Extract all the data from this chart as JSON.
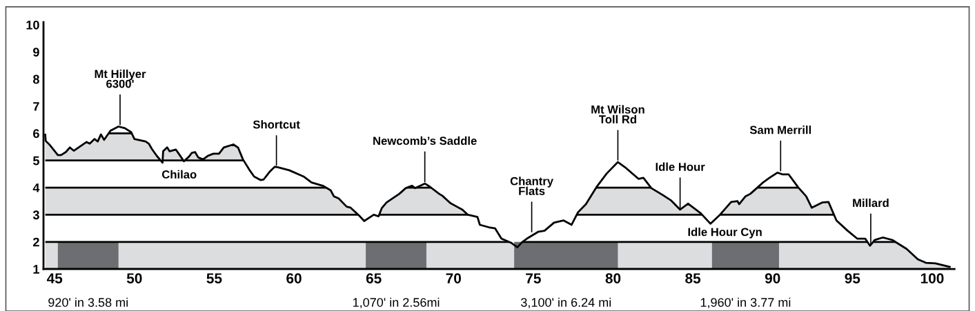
{
  "chart_data": {
    "type": "line",
    "x": [
      44.41,
      44.44,
      44.7,
      45.2,
      45.4,
      45.7,
      45.95,
      46.2,
      47.0,
      47.2,
      47.5,
      47.7,
      47.9,
      48.1,
      48.5,
      49.0,
      49.4,
      49.8,
      50.0,
      50.7,
      50.9,
      51.1,
      51.4,
      51.76,
      51.8,
      52.05,
      52.2,
      52.6,
      52.8,
      53.1,
      53.4,
      53.6,
      53.8,
      54.0,
      54.3,
      54.6,
      54.95,
      55.3,
      55.6,
      56.2,
      56.5,
      56.8,
      57.2,
      57.5,
      57.9,
      58.1,
      58.5,
      58.8,
      59.0,
      59.7,
      60.6,
      61.1,
      61.8,
      62.3,
      62.5,
      62.8,
      63.3,
      63.55,
      64.1,
      64.4,
      65.0,
      65.3,
      65.5,
      65.8,
      66.6,
      67.0,
      67.4,
      67.6,
      68.2,
      68.5,
      69.1,
      69.3,
      69.8,
      70.2,
      70.55,
      70.9,
      71.5,
      71.65,
      72.2,
      72.6,
      73.0,
      73.6,
      74.0,
      74.3,
      74.6,
      75.3,
      75.7,
      76.3,
      76.9,
      77.4,
      77.8,
      78.3,
      78.95,
      79.6,
      80.3,
      80.75,
      81.6,
      81.9,
      82.4,
      83.1,
      83.65,
      84.2,
      84.7,
      85.5,
      86.1,
      86.7,
      87.4,
      87.8,
      87.9,
      88.3,
      88.6,
      89.1,
      89.4,
      89.8,
      90.3,
      90.6,
      91.0,
      91.6,
      92.1,
      92.45,
      93.1,
      93.5,
      94.0,
      94.7,
      95.3,
      95.8,
      96.1,
      96.4,
      96.9,
      97.5,
      98.4,
      99.1,
      99.6,
      100.2,
      101.1
    ],
    "series": [
      {
        "color": "#000000",
        "values": [
          5.95,
          5.72,
          5.57,
          5.2,
          5.2,
          5.31,
          5.48,
          5.36,
          5.68,
          5.62,
          5.79,
          5.7,
          5.96,
          5.76,
          6.1,
          6.25,
          6.19,
          6.04,
          5.79,
          5.7,
          5.62,
          5.42,
          5.17,
          4.92,
          5.34,
          5.48,
          5.34,
          5.4,
          5.23,
          4.97,
          5.13,
          5.28,
          5.31,
          5.11,
          5.04,
          5.17,
          5.25,
          5.25,
          5.48,
          5.59,
          5.47,
          5.04,
          4.66,
          4.41,
          4.28,
          4.3,
          4.6,
          4.77,
          4.75,
          4.64,
          4.41,
          4.19,
          4.07,
          3.9,
          3.68,
          3.6,
          3.3,
          3.26,
          2.96,
          2.77,
          3.0,
          2.94,
          3.24,
          3.45,
          3.77,
          3.98,
          4.07,
          3.98,
          4.15,
          4.04,
          3.77,
          3.7,
          3.43,
          3.3,
          3.19,
          3.0,
          2.92,
          2.63,
          2.54,
          2.5,
          2.12,
          1.97,
          1.8,
          1.99,
          2.12,
          2.37,
          2.41,
          2.71,
          2.79,
          2.63,
          3.09,
          3.39,
          4.01,
          4.52,
          4.94,
          4.75,
          4.32,
          4.36,
          3.98,
          3.73,
          3.52,
          3.19,
          3.41,
          3.05,
          2.67,
          3.0,
          3.47,
          3.5,
          3.39,
          3.68,
          3.77,
          4.03,
          4.19,
          4.36,
          4.55,
          4.49,
          4.49,
          4.01,
          3.68,
          3.26,
          3.45,
          3.47,
          2.79,
          2.41,
          2.12,
          2.12,
          1.86,
          2.07,
          2.16,
          2.07,
          1.74,
          1.36,
          1.23,
          1.21,
          1.08
        ]
      }
    ],
    "xlim": [
      44.3,
      101.4
    ],
    "ylim": [
      1,
      10.1
    ],
    "xticks": [
      45,
      50,
      55,
      60,
      65,
      70,
      75,
      80,
      85,
      90,
      95,
      100
    ],
    "yticks": [
      1,
      2,
      3,
      4,
      5,
      6,
      7,
      8,
      9,
      10
    ],
    "grid": "y",
    "legend": false,
    "marker": "none",
    "line_style": "solid",
    "bands": [
      {
        "axis": "y",
        "from": 1,
        "to": 2,
        "color": "#dcdddf"
      },
      {
        "axis": "y",
        "from": 3,
        "to": 4,
        "color": "#dcdddf"
      },
      {
        "axis": "y",
        "from": 5,
        "to": 6,
        "color": "#dcdddf"
      },
      {
        "axis": "x",
        "from": 45.2,
        "to": 49.0,
        "color": "#6d6e71",
        "label": "920' in 3.58 mi"
      },
      {
        "axis": "x",
        "from": 64.5,
        "to": 68.3,
        "color": "#6d6e71",
        "label": "1,070' in 2.56mi"
      },
      {
        "axis": "x",
        "from": 73.8,
        "to": 80.3,
        "color": "#6d6e71",
        "label": "3,100' in 6.24 mi"
      },
      {
        "axis": "x",
        "from": 86.2,
        "to": 90.4,
        "color": "#6d6e71",
        "label": "1,960' in 3.77 mi"
      }
    ],
    "annotations": [
      {
        "text": "Mt Hillyer\n6300'",
        "x": 49.1,
        "y": 6.25
      },
      "Chilao",
      {
        "text": "Shortcut",
        "x": 58.9,
        "y": 4.75
      },
      {
        "text": "Newcomb’s Saddle",
        "x": 68.2,
        "y": 4.15
      },
      {
        "text": "Chantry\nFlats",
        "x": 74.9,
        "y": 2.3
      },
      {
        "text": "Mt Wilson\nToll Rd",
        "x": 80.3,
        "y": 4.94
      },
      {
        "text": "Idle Hour",
        "x": 84.2,
        "y": 3.19
      },
      "Idle Hour Cyn",
      {
        "text": "Sam Merrill",
        "x": 90.5,
        "y": 4.55
      },
      {
        "text": "Millard",
        "x": 96.15,
        "y": 1.86
      }
    ]
  }
}
